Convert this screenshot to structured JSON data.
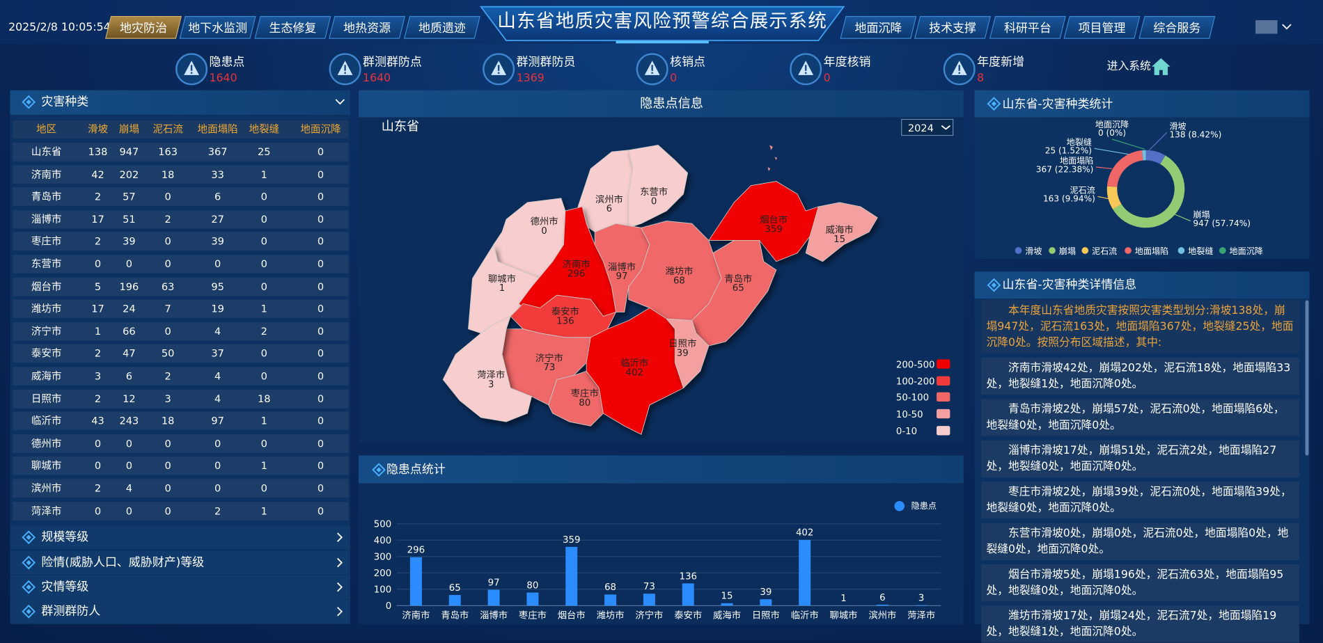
{
  "header": {
    "datetime": "2025/2/8 10:05:54",
    "title": "山东省地质灾害风险预警综合展示系统",
    "left_tabs": [
      "地灾防治",
      "地下水监测",
      "生态修复",
      "地热资源",
      "地质遗迹"
    ],
    "right_tabs": [
      "地面沉降",
      "技术支撑",
      "科研平台",
      "项目管理",
      "综合服务"
    ]
  },
  "stats": [
    {
      "label": "隐患点",
      "value": 1640
    },
    {
      "label": "群测群防点",
      "value": 1640
    },
    {
      "label": "群测群防员",
      "value": 1369
    },
    {
      "label": "核销点",
      "value": 0
    },
    {
      "label": "年度核销",
      "value": 0
    },
    {
      "label": "年度新增",
      "value": 8
    }
  ],
  "enter_label": "进入系统",
  "left_panel": {
    "title": "灾害种类",
    "table": {
      "columns": [
        "地区",
        "滑坡",
        "崩塌",
        "泥石流",
        "地面塌陷",
        "地裂缝",
        "地面沉降"
      ],
      "rows": [
        [
          "山东省",
          138,
          947,
          163,
          367,
          25,
          0
        ],
        [
          "济南市",
          42,
          202,
          18,
          33,
          1,
          0
        ],
        [
          "青岛市",
          2,
          57,
          0,
          6,
          0,
          0
        ],
        [
          "淄博市",
          17,
          51,
          2,
          27,
          0,
          0
        ],
        [
          "枣庄市",
          2,
          39,
          0,
          39,
          0,
          0
        ],
        [
          "东营市",
          0,
          0,
          0,
          0,
          0,
          0
        ],
        [
          "烟台市",
          5,
          196,
          63,
          95,
          0,
          0
        ],
        [
          "潍坊市",
          17,
          24,
          7,
          19,
          1,
          0
        ],
        [
          "济宁市",
          1,
          66,
          0,
          4,
          2,
          0
        ],
        [
          "泰安市",
          2,
          47,
          50,
          37,
          0,
          0
        ],
        [
          "威海市",
          3,
          6,
          2,
          4,
          0,
          0
        ],
        [
          "日照市",
          2,
          12,
          3,
          4,
          18,
          0
        ],
        [
          "临沂市",
          43,
          243,
          18,
          97,
          1,
          0
        ],
        [
          "德州市",
          0,
          0,
          0,
          0,
          0,
          0
        ],
        [
          "聊城市",
          0,
          0,
          0,
          0,
          1,
          0
        ],
        [
          "滨州市",
          2,
          4,
          0,
          0,
          0,
          0
        ],
        [
          "菏泽市",
          0,
          0,
          0,
          2,
          1,
          0
        ]
      ]
    },
    "sections": [
      "规模等级",
      "险情(威胁人口、威胁财产)等级",
      "灾情等级",
      "群测群防人"
    ]
  },
  "map": {
    "title": "隐患点信息",
    "region": "山东省",
    "year": 2024,
    "cities": [
      {
        "name": "德州市",
        "value": 0
      },
      {
        "name": "滨州市",
        "value": 6
      },
      {
        "name": "东营市",
        "value": 0
      },
      {
        "name": "聊城市",
        "value": 1
      },
      {
        "name": "济南市",
        "value": 296
      },
      {
        "name": "淄博市",
        "value": 97
      },
      {
        "name": "潍坊市",
        "value": 68
      },
      {
        "name": "烟台市",
        "value": 359
      },
      {
        "name": "威海市",
        "value": 15
      },
      {
        "name": "青岛市",
        "value": 65
      },
      {
        "name": "泰安市",
        "value": 136
      },
      {
        "name": "济宁市",
        "value": 73
      },
      {
        "name": "菏泽市",
        "value": 3
      },
      {
        "name": "枣庄市",
        "value": 80
      },
      {
        "name": "临沂市",
        "value": 402
      },
      {
        "name": "日照市",
        "value": 39
      }
    ],
    "legend": [
      {
        "label": "200-500",
        "color": "#f00000"
      },
      {
        "label": "100-200",
        "color": "#f33a3a"
      },
      {
        "label": "50-100",
        "color": "#f06767"
      },
      {
        "label": "10-50",
        "color": "#f4a0a0"
      },
      {
        "label": "0-10",
        "color": "#f8cdcd"
      }
    ]
  },
  "chart_data": [
    {
      "type": "bar",
      "title": "隐患点统计",
      "categories": [
        "济南市",
        "青岛市",
        "淄博市",
        "枣庄市",
        "烟台市",
        "潍坊市",
        "济宁市",
        "泰安市",
        "威海市",
        "日照市",
        "临沂市",
        "聊城市",
        "滨州市",
        "菏泽市"
      ],
      "series": [
        {
          "name": "隐患点",
          "color": "#2a8cff",
          "values": [
            296,
            65,
            97,
            80,
            359,
            68,
            73,
            136,
            15,
            39,
            402,
            1,
            6,
            3
          ]
        }
      ],
      "ylim": [
        0,
        500
      ],
      "yticks": [
        0,
        100,
        200,
        300,
        400,
        500
      ],
      "grid": true
    },
    {
      "type": "pie",
      "title": "山东省-灾害种类统计",
      "categories": [
        "滑坡",
        "崩塌",
        "泥石流",
        "地面塌陷",
        "地裂缝",
        "地面沉降"
      ],
      "values": [
        138,
        947,
        163,
        367,
        25,
        0
      ],
      "value_labels": [
        "138 (8.42%)",
        "947 (57.74%)",
        "163 (9.94%)",
        "367 (22.38%)",
        "25 (1.52%)",
        "0 (0%)"
      ],
      "colors": [
        "#5470c6",
        "#91cc75",
        "#fac858",
        "#ee6666",
        "#73c0de",
        "#3ba272"
      ]
    }
  ],
  "detail": {
    "title": "山东省-灾害种类详情信息",
    "intro": "本年度山东省地质灾害按照灾害类型划分:滑坡138处，崩塌947处，泥石流163处，地面塌陷367处，地裂缝25处，地面沉降0处。按照分布区域描述，其中:",
    "items": [
      "济南市滑坡42处，崩塌202处，泥石流18处，地面塌陷33处，地裂缝1处，地面沉降0处。",
      "青岛市滑坡2处，崩塌57处，泥石流0处，地面塌陷6处，地裂缝0处，地面沉降0处。",
      "淄博市滑坡17处，崩塌51处，泥石流2处，地面塌陷27处，地裂缝0处，地面沉降0处。",
      "枣庄市滑坡2处，崩塌39处，泥石流0处，地面塌陷39处，地裂缝0处，地面沉降0处。",
      "东营市滑坡0处，崩塌0处，泥石流0处，地面塌陷0处，地裂缝0处，地面沉降0处。",
      "烟台市滑坡5处，崩塌196处，泥石流63处，地面塌陷95处，地裂缝0处，地面沉降0处。",
      "潍坊市滑坡17处，崩塌24处，泥石流7处，地面塌陷19处，地裂缝1处，地面沉降0处。"
    ]
  }
}
